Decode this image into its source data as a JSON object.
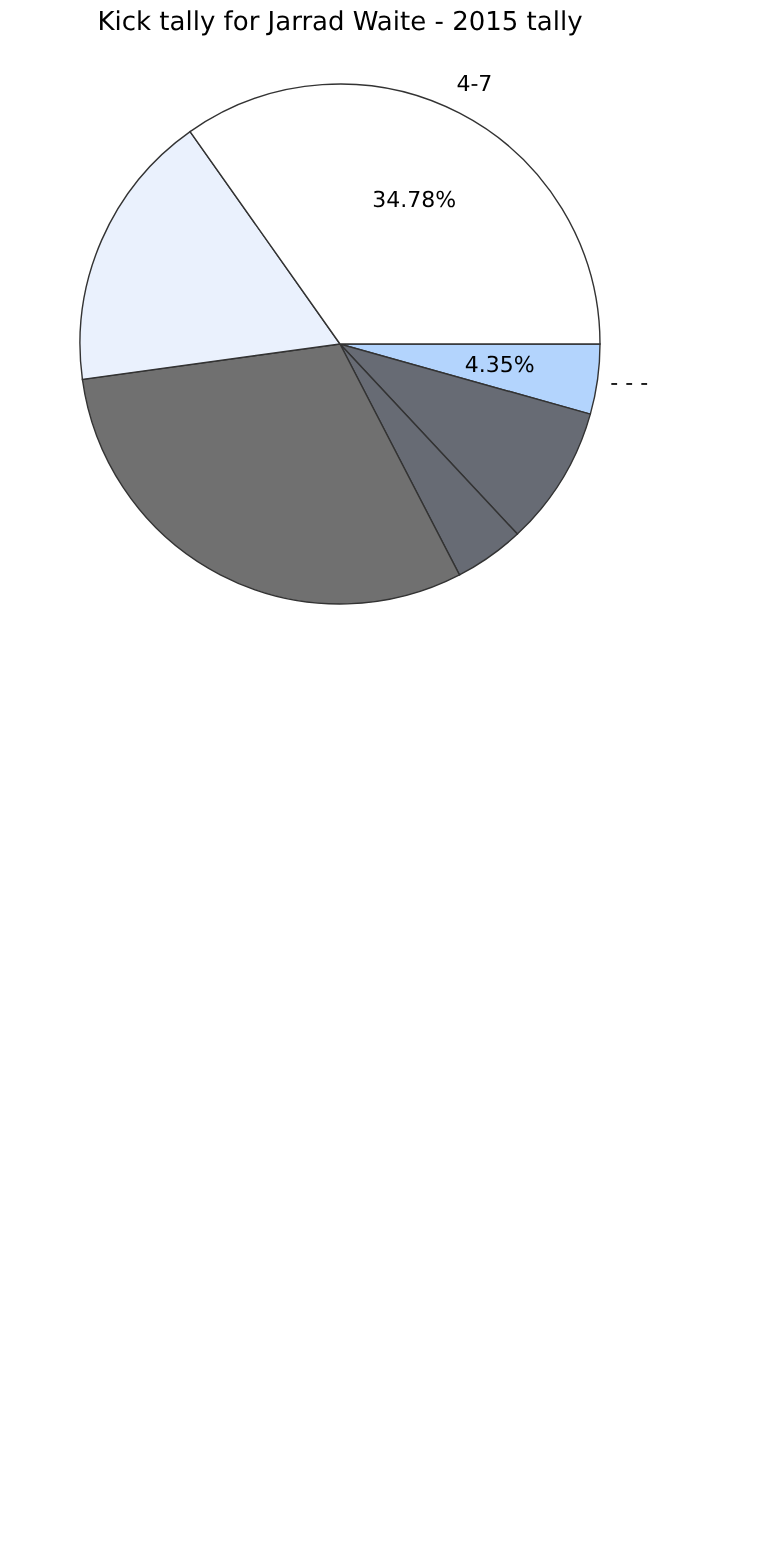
{
  "chart_data": {
    "type": "pie",
    "title": "Kick tally for Jarrad Waite - 2015 tally",
    "categories": [
      "- - -",
      null,
      null,
      null,
      null,
      "4-7"
    ],
    "values": [
      4.35,
      8.7,
      4.35,
      30.43,
      17.39,
      34.78
    ],
    "colors": [
      "#b3d4fd",
      "#676b74",
      "#676b74",
      "#707070",
      "#eaf1fd",
      "#ffffff"
    ],
    "value_labels": [
      "4.35%",
      null,
      null,
      null,
      null,
      "34.78%"
    ],
    "legend": false
  }
}
